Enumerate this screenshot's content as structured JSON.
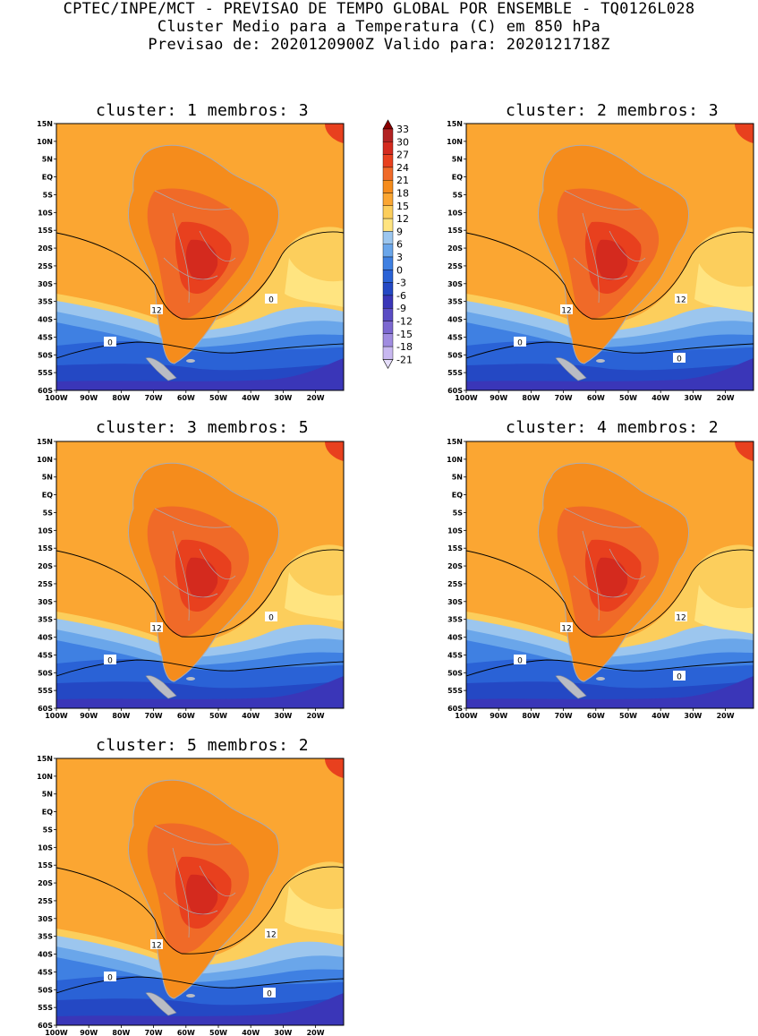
{
  "header": {
    "line1": "CPTEC/INPE/MCT - PREVISAO DE TEMPO GLOBAL POR ENSEMBLE - TQ0126L028",
    "line2": "Cluster Medio para a Temperatura (C) em 850 hPa",
    "line3": "Previsao de: 2020120900Z   Valido para: 2020121718Z"
  },
  "lat_labels": [
    "15N",
    "10N",
    "5N",
    "EQ",
    "5S",
    "10S",
    "15S",
    "20S",
    "25S",
    "30S",
    "35S",
    "40S",
    "45S",
    "50S",
    "55S",
    "60S"
  ],
  "lon_labels": [
    "100W",
    "90W",
    "80W",
    "70W",
    "60W",
    "50W",
    "40W",
    "30W",
    "20W"
  ],
  "colorbar": {
    "labels": [
      "33",
      "30",
      "27",
      "24",
      "21",
      "18",
      "15",
      "12",
      "9",
      "6",
      "3",
      "0",
      "-3",
      "-6",
      "-9",
      "-12",
      "-15",
      "-18",
      "-21"
    ],
    "colors": [
      "#8b0000",
      "#b22222",
      "#d42a1e",
      "#e8401e",
      "#f06a28",
      "#f58c1c",
      "#fba632",
      "#fcce5c",
      "#ffe480",
      "#9cc6ee",
      "#6aa6ea",
      "#3f80e2",
      "#2a62d6",
      "#2448c4",
      "#3a36b8",
      "#5a4cc4",
      "#7c68d0",
      "#a08ce0",
      "#c8b8f0",
      "#e6defa"
    ]
  },
  "clusters": [
    {
      "title": "cluster: 1   membros: 3",
      "contours": [
        "12",
        "0",
        "0"
      ]
    },
    {
      "title": "cluster: 2   membros: 3",
      "contours": [
        "12",
        "12",
        "0",
        "0"
      ]
    },
    {
      "title": "cluster: 3   membros: 5",
      "contours": [
        "12",
        "0",
        "0"
      ]
    },
    {
      "title": "cluster: 4   membros: 2",
      "contours": [
        "12",
        "12",
        "0",
        "0"
      ]
    },
    {
      "title": "cluster: 5   membros: 2",
      "contours": [
        "12",
        "12",
        "0",
        "0"
      ]
    }
  ]
}
